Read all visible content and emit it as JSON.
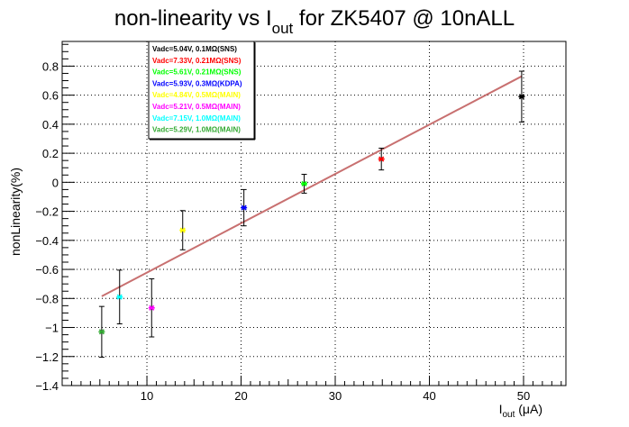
{
  "chart_data": {
    "type": "scatter",
    "title_parts": [
      "non-linearity vs I",
      "out",
      " for ZK5407 @ 10nALL"
    ],
    "xlabel_parts": [
      "I",
      "out",
      " (μA)"
    ],
    "ylabel": "nonLinearity(%)",
    "xlim": [
      1,
      54.5
    ],
    "ylim": [
      -1.4,
      0.97
    ],
    "xticks": [
      10,
      20,
      30,
      40,
      50
    ],
    "yticks": [
      -1.4,
      -1.2,
      -1,
      -0.8,
      -0.6,
      -0.4,
      -0.2,
      0,
      0.2,
      0.4,
      0.6,
      0.8
    ],
    "ytick_labels": [
      "−1.4",
      "−1.2",
      "−1",
      "−0.8",
      "−0.6",
      "−0.4",
      "−0.2",
      "0",
      "0.2",
      "0.4",
      "0.6",
      "0.8"
    ],
    "grid": true,
    "legend_position": "top-left",
    "legend_border": "#000000",
    "fit_line": {
      "x": [
        5.2,
        49.8
      ],
      "y": [
        -0.785,
        0.73
      ],
      "color": "#c87070"
    },
    "series": [
      {
        "name": "Vadc=5.04V, 0.1MΩ(SNS)",
        "color": "#000000",
        "x": [
          49.8
        ],
        "y": [
          0.59
        ],
        "err": [
          0.175
        ]
      },
      {
        "name": "Vadc=7.33V, 0.21MΩ(SNS)",
        "color": "#ff0000",
        "x": [
          34.9
        ],
        "y": [
          0.16
        ],
        "err": [
          0.075
        ]
      },
      {
        "name": "Vadc=5.61V, 0.21MΩ(SNS)",
        "color": "#00ff00",
        "x": [
          26.7
        ],
        "y": [
          -0.01
        ],
        "err": [
          0.065
        ]
      },
      {
        "name": "Vadc=5.93V, 0.3MΩ(KDPA)",
        "color": "#0000ff",
        "x": [
          20.3
        ],
        "y": [
          -0.175
        ],
        "err": [
          0.125
        ]
      },
      {
        "name": "Vadc=4.84V, 0.5MΩ(MAIN)",
        "color": "#ffff00",
        "x": [
          13.8
        ],
        "y": [
          -0.33
        ],
        "err": [
          0.135
        ]
      },
      {
        "name": "Vadc=5.21V, 0.5MΩ(MAIN)",
        "color": "#ff00ff",
        "x": [
          10.5
        ],
        "y": [
          -0.865
        ],
        "err": [
          0.2
        ]
      },
      {
        "name": "Vadc=7.15V, 1.0MΩ(MAIN)",
        "color": "#00ffff",
        "x": [
          7.1
        ],
        "y": [
          -0.79
        ],
        "err": [
          0.185
        ]
      },
      {
        "name": "Vadc=5.29V, 1.0MΩ(MAIN)",
        "color": "#33aa33",
        "x": [
          5.2
        ],
        "y": [
          -1.03
        ],
        "err": [
          0.175
        ]
      }
    ]
  }
}
